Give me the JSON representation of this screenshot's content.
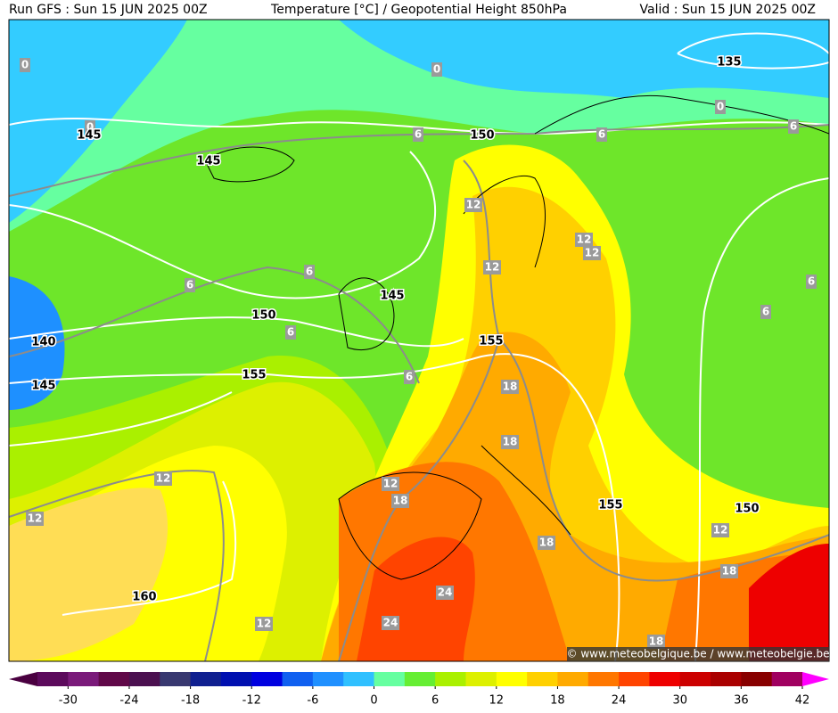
{
  "header": {
    "left": "Run GFS : Sun 15 JUN 2025 00Z",
    "center": "Temperature [°C] / Geopotential Height 850hPa",
    "right": "Valid : Sun 15 JUN 2025 00Z"
  },
  "temperature_labels": [
    "0",
    "0",
    "0",
    "0",
    "6",
    "6",
    "6",
    "6",
    "6",
    "6",
    "6",
    "6",
    "6",
    "12",
    "12",
    "12",
    "12",
    "12",
    "12",
    "12",
    "12",
    "12",
    "18",
    "18",
    "18",
    "18",
    "18",
    "18",
    "24",
    "24"
  ],
  "height_labels": [
    "135",
    "150",
    "145",
    "145",
    "145",
    "150",
    "155",
    "140",
    "145",
    "155",
    "155",
    "150",
    "160"
  ],
  "watermark": "© www.meteobelgique.be / www.meteobelgie.be",
  "colorbar": {
    "lim": [
      -33,
      42
    ],
    "ticks": [
      -30,
      -24,
      -18,
      -12,
      -6,
      0,
      6,
      12,
      18,
      24,
      30,
      36,
      42
    ],
    "colors": [
      "#5c0a5c",
      "#7a1a7a",
      "#600848",
      "#4b1050",
      "#383870",
      "#102090",
      "#0010b0",
      "#0000e0",
      "#1060f0",
      "#2090ff",
      "#30c0ff",
      "#66ffa0",
      "#66ee33",
      "#aaf000",
      "#ddf000",
      "#ffff00",
      "#ffd000",
      "#ffaa00",
      "#ff7700",
      "#ff4400",
      "#ee0000",
      "#cc0000",
      "#aa0000",
      "#880000",
      "#a00060"
    ],
    "low_arrow_color": "#4a0040",
    "high_arrow_color": "#ff00ff"
  }
}
